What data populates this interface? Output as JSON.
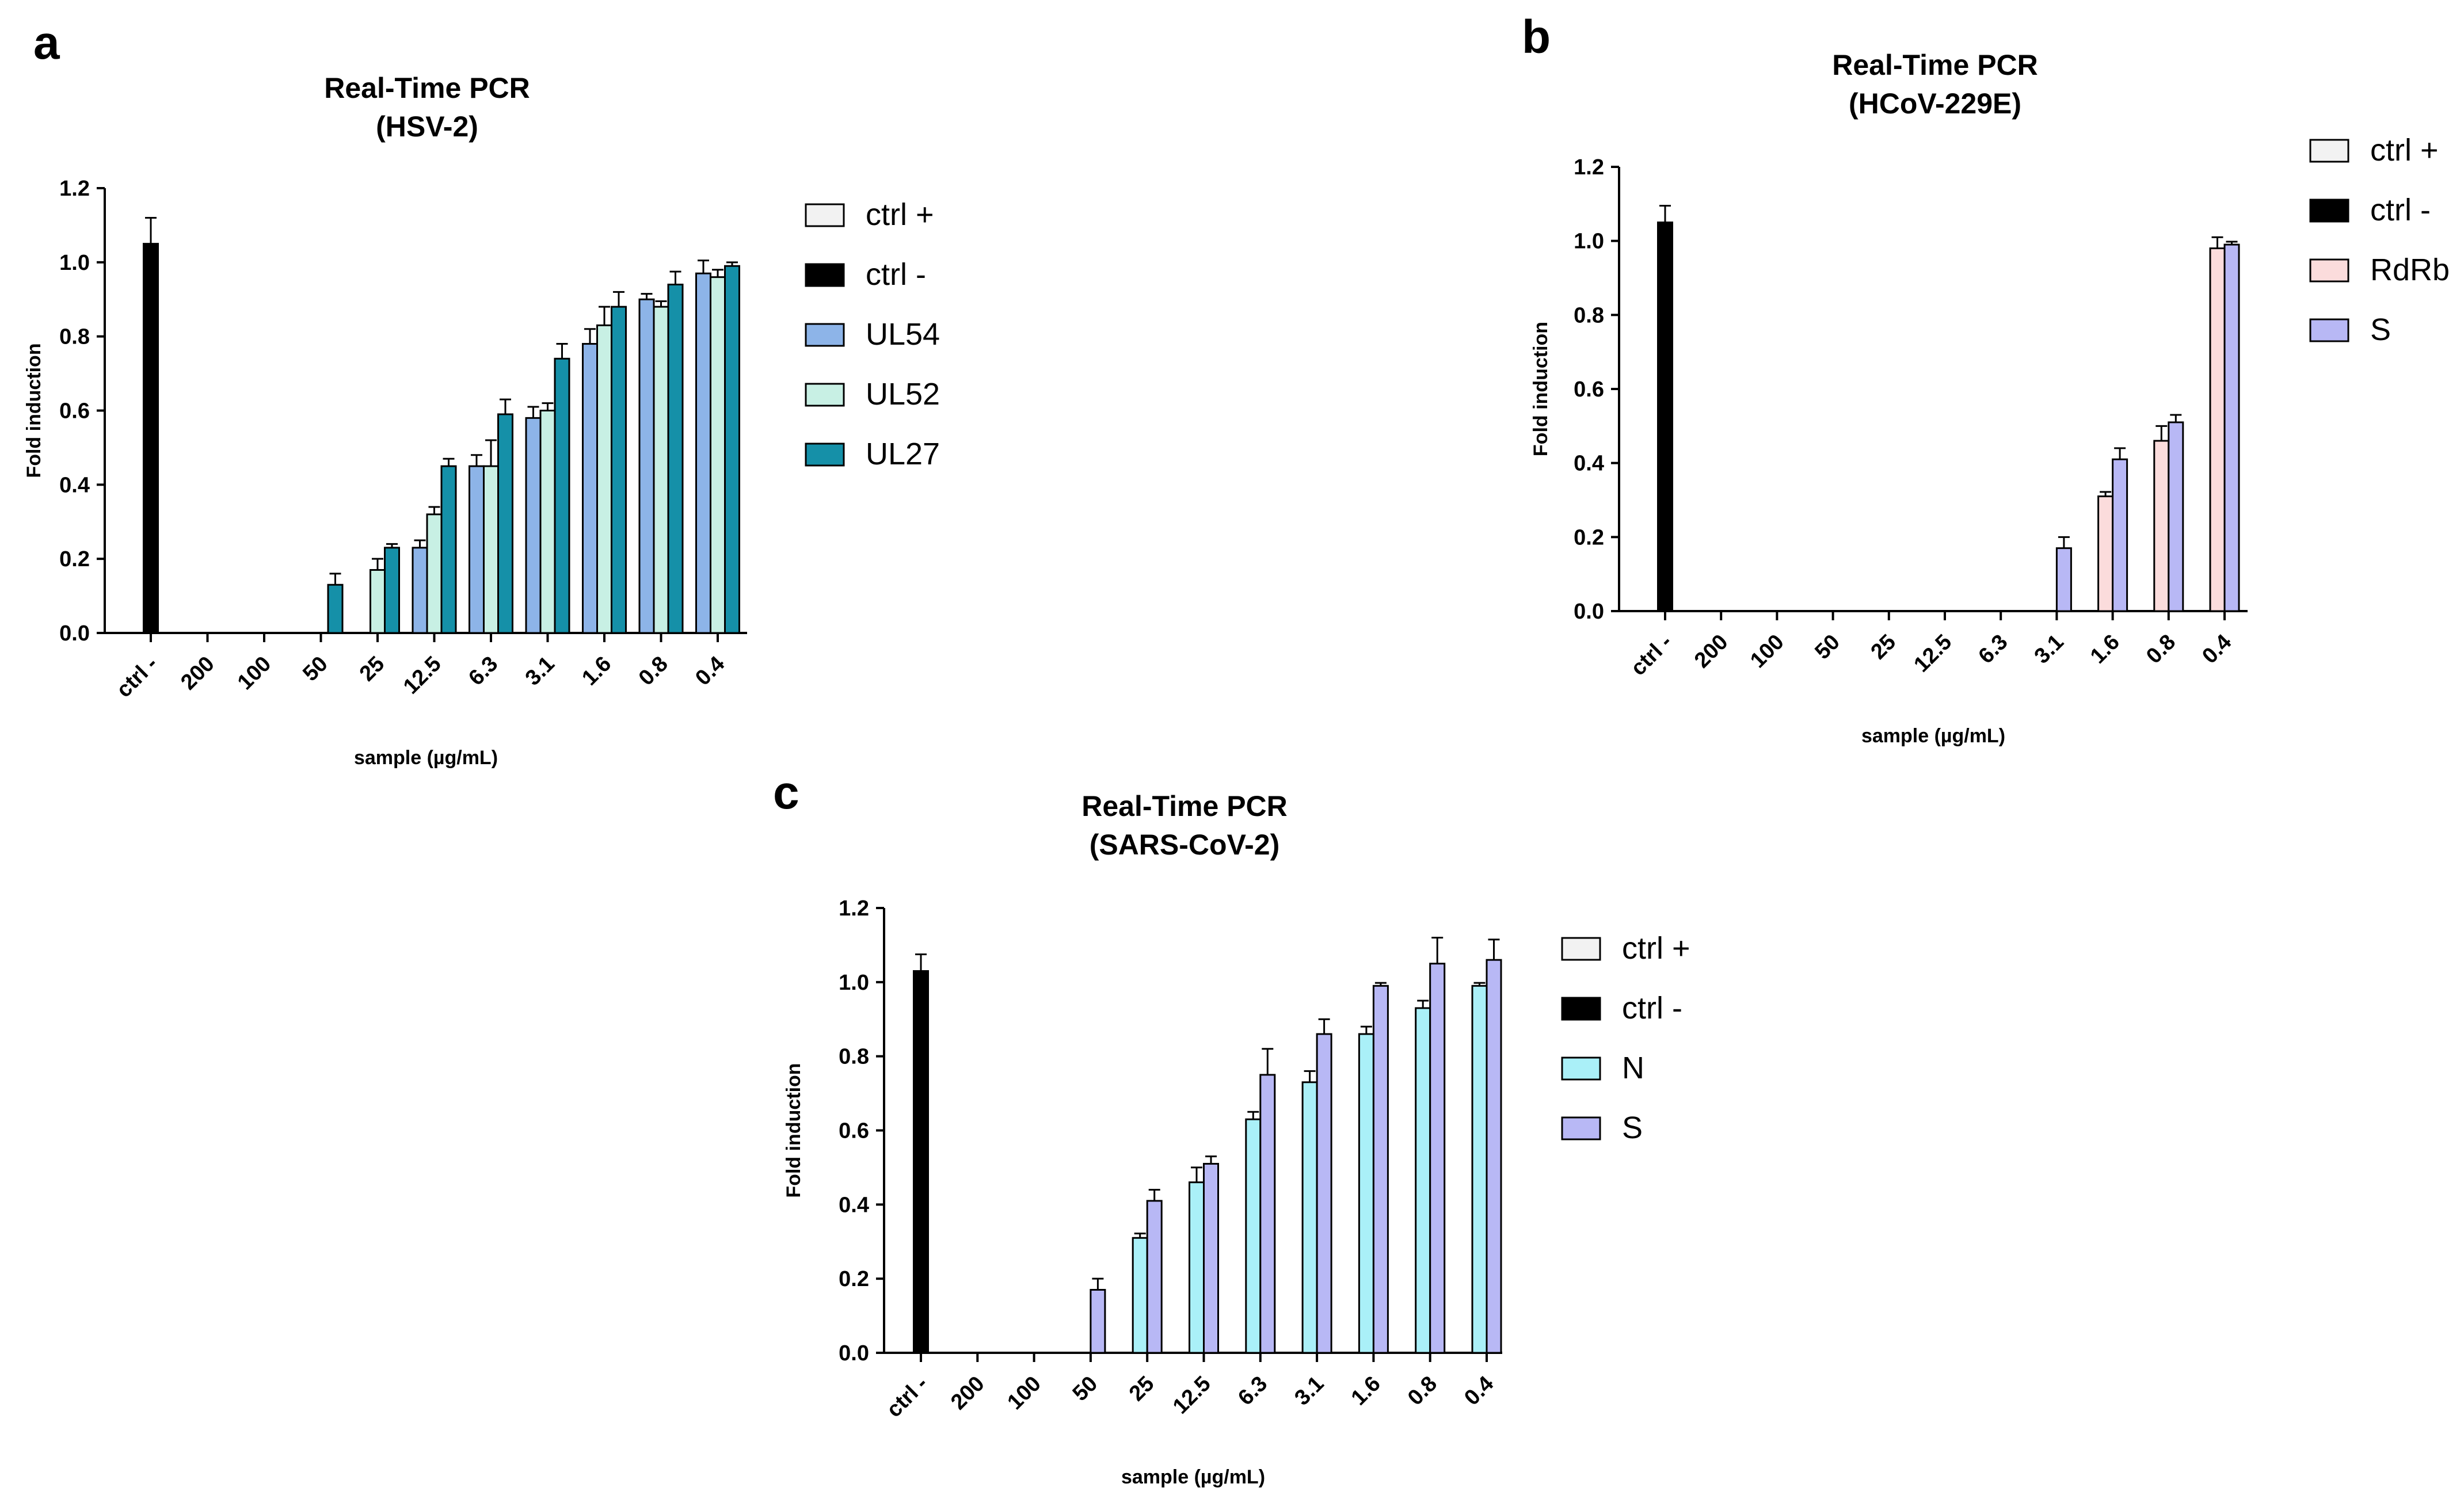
{
  "chart_data": [
    {
      "panel": "a",
      "type": "bar",
      "title": "Real-Time PCR",
      "subtitle": "(HSV-2)",
      "xlabel": "sample (µg/mL)",
      "ylabel": "Fold induction",
      "ylim": [
        0,
        1.2
      ],
      "yticks": [
        "0.0",
        "0.2",
        "0.4",
        "0.6",
        "0.8",
        "1.0",
        "1.2"
      ],
      "grid": false,
      "legend_position": "right",
      "categories": [
        "ctrl -",
        "200",
        "100",
        "50",
        "25",
        "12.5",
        "6.3",
        "3.1",
        "1.6",
        "0.8",
        "0.4"
      ],
      "series": [
        {
          "name": "ctrl +",
          "color": "#f2f2f2",
          "values": [
            null,
            null,
            null,
            null,
            null,
            null,
            null,
            null,
            null,
            null,
            null
          ],
          "errors": []
        },
        {
          "name": "ctrl -",
          "color": "#000000",
          "values": [
            1.05,
            null,
            null,
            null,
            null,
            null,
            null,
            null,
            null,
            null,
            null
          ],
          "errors": [
            0.07,
            0,
            0,
            0,
            0,
            0,
            0,
            0,
            0,
            0,
            0
          ]
        },
        {
          "name": "UL54",
          "color": "#8db4e8",
          "values": [
            null,
            0,
            0,
            0,
            0,
            0.23,
            0.45,
            0.58,
            0.78,
            0.9,
            0.97
          ],
          "errors": [
            0,
            0,
            0,
            0,
            0,
            0.02,
            0.03,
            0.03,
            0.04,
            0.015,
            0.035
          ]
        },
        {
          "name": "UL52",
          "color": "#c8f0e4",
          "values": [
            null,
            0,
            0,
            0,
            0.17,
            0.32,
            0.45,
            0.6,
            0.83,
            0.88,
            0.96
          ],
          "errors": [
            0,
            0,
            0,
            0,
            0.03,
            0.02,
            0.07,
            0.02,
            0.05,
            0.015,
            0.02
          ]
        },
        {
          "name": "UL27",
          "color": "#1590a8",
          "values": [
            null,
            0,
            0,
            0.13,
            0.23,
            0.45,
            0.59,
            0.74,
            0.88,
            0.94,
            0.99
          ],
          "errors": [
            0,
            0,
            0,
            0.03,
            0.01,
            0.02,
            0.04,
            0.04,
            0.04,
            0.035,
            0.01
          ]
        }
      ]
    },
    {
      "panel": "b",
      "type": "bar",
      "title": "Real-Time PCR",
      "subtitle": "(HCoV-229E)",
      "xlabel": "sample (µg/mL)",
      "ylabel": "Fold induction",
      "ylim": [
        0,
        1.2
      ],
      "yticks": [
        "0.0",
        "0.2",
        "0.4",
        "0.6",
        "0.8",
        "1.0",
        "1.2"
      ],
      "grid": false,
      "legend_position": "top-right",
      "categories": [
        "ctrl -",
        "200",
        "100",
        "50",
        "25",
        "12.5",
        "6.3",
        "3.1",
        "1.6",
        "0.8",
        "0.4"
      ],
      "series": [
        {
          "name": "ctrl +",
          "color": "#f2f2f2",
          "values": [
            null,
            null,
            null,
            null,
            null,
            null,
            null,
            null,
            null,
            null,
            null
          ],
          "errors": []
        },
        {
          "name": "ctrl -",
          "color": "#000000",
          "values": [
            1.05,
            null,
            null,
            null,
            null,
            null,
            null,
            null,
            null,
            null,
            null
          ],
          "errors": [
            0.045,
            0,
            0,
            0,
            0,
            0,
            0,
            0,
            0,
            0,
            0
          ]
        },
        {
          "name": "RdRb",
          "color": "#fbdcdc",
          "values": [
            null,
            0,
            0,
            0,
            0,
            0,
            0,
            0,
            0.31,
            0.46,
            0.98
          ],
          "errors": [
            0,
            0,
            0,
            0,
            0,
            0,
            0,
            0,
            0.012,
            0.04,
            0.03
          ]
        },
        {
          "name": "S",
          "color": "#b8b8f5",
          "values": [
            null,
            0,
            0,
            0,
            0,
            0,
            0,
            0.17,
            0.41,
            0.51,
            0.99
          ],
          "errors": [
            0,
            0,
            0,
            0,
            0,
            0,
            0,
            0.03,
            0.03,
            0.02,
            0.008
          ]
        }
      ]
    },
    {
      "panel": "c",
      "type": "bar",
      "title": "Real-Time PCR",
      "subtitle": "(SARS-CoV-2)",
      "xlabel": "sample (µg/mL)",
      "ylabel": "Fold induction",
      "ylim": [
        0,
        1.2
      ],
      "yticks": [
        "0.0",
        "0.2",
        "0.4",
        "0.6",
        "0.8",
        "1.0",
        "1.2"
      ],
      "grid": false,
      "legend_position": "right",
      "categories": [
        "ctrl -",
        "200",
        "100",
        "50",
        "25",
        "12.5",
        "6.3",
        "3.1",
        "1.6",
        "0.8",
        "0.4"
      ],
      "series": [
        {
          "name": "ctrl +",
          "color": "#f2f2f2",
          "values": [
            null,
            null,
            null,
            null,
            null,
            null,
            null,
            null,
            null,
            null,
            null
          ],
          "errors": []
        },
        {
          "name": "ctrl -",
          "color": "#000000",
          "values": [
            1.03,
            null,
            null,
            null,
            null,
            null,
            null,
            null,
            null,
            null,
            null
          ],
          "errors": [
            0.045,
            0,
            0,
            0,
            0,
            0,
            0,
            0,
            0,
            0,
            0
          ]
        },
        {
          "name": "N",
          "color": "#aaf0f8",
          "values": [
            null,
            0,
            0,
            0,
            0.31,
            0.46,
            0.63,
            0.73,
            0.86,
            0.93,
            0.99
          ],
          "errors": [
            0,
            0,
            0,
            0,
            0.012,
            0.04,
            0.02,
            0.03,
            0.02,
            0.02,
            0.008
          ]
        },
        {
          "name": "S",
          "color": "#b8b8f5",
          "values": [
            null,
            0,
            0,
            0.17,
            0.41,
            0.51,
            0.75,
            0.86,
            0.99,
            1.05,
            1.06
          ],
          "errors": [
            0,
            0,
            0,
            0.03,
            0.03,
            0.02,
            0.07,
            0.04,
            0.008,
            0.07,
            0.055
          ]
        }
      ]
    }
  ]
}
